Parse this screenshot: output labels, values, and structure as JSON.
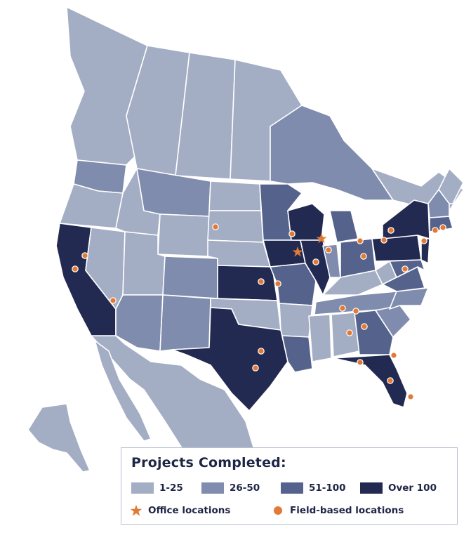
{
  "legend": {
    "title": "Projects Completed:",
    "categories": [
      {
        "label": "1-25",
        "color": "#a3adc4"
      },
      {
        "label": "26-50",
        "color": "#7f8cad"
      },
      {
        "label": "51-100",
        "color": "#55628c"
      },
      {
        "label": "Over 100",
        "color": "#222a52"
      }
    ],
    "office_label": "Office locations",
    "field_label": "Field-based locations",
    "marker_color": "#e07a36"
  },
  "regions": {
    "over_100": [
      "California",
      "Texas",
      "Kansas",
      "Iowa",
      "Wisconsin",
      "Illinois",
      "Pennsylvania",
      "New York",
      "Florida",
      "New Jersey"
    ],
    "51_100": [
      "Michigan",
      "Ohio",
      "Virginia",
      "Georgia",
      "Missouri",
      "Minnesota",
      "Louisiana",
      "Massachusetts",
      "Maryland",
      "Ontario",
      "Quebec",
      "Indiana",
      "Washington"
    ],
    "26_50": [
      "Arizona",
      "New Mexico",
      "Colorado",
      "Montana",
      "Tennessee",
      "North Carolina",
      "South Carolina",
      "Kentucky"
    ],
    "1_25": [
      "Alaska",
      "Mexico",
      "British Columbia",
      "Alberta",
      "Saskatchewan",
      "Manitoba",
      "Oregon",
      "Idaho",
      "Nevada",
      "Utah",
      "Wyoming",
      "North Dakota",
      "South Dakota",
      "Nebraska",
      "Oklahoma",
      "Arkansas",
      "Mississippi",
      "Alabama",
      "West Virginia",
      "Maine",
      "New Brunswick"
    ]
  }
}
